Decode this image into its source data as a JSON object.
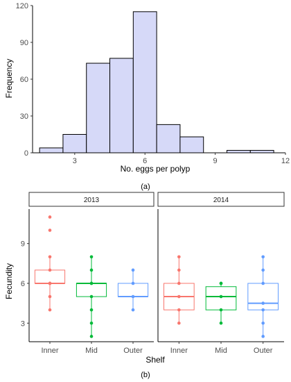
{
  "chart_data": [
    {
      "type": "bar",
      "subtype": "histogram",
      "panel_label": "(a)",
      "xlabel": "No. eggs per polyp",
      "ylabel": "Frequency",
      "xlim": [
        1.2,
        12.0
      ],
      "ylim": [
        0,
        120
      ],
      "x_ticks": [
        "3",
        "6",
        "9",
        "12"
      ],
      "x_tick_values": [
        3,
        6,
        9,
        12
      ],
      "y_ticks": [
        "0",
        "30",
        "60",
        "90",
        "120"
      ],
      "y_tick_values": [
        0,
        30,
        60,
        90,
        120
      ],
      "bin_width": 1,
      "bins": [
        {
          "x": 2,
          "value": 4
        },
        {
          "x": 3,
          "value": 15
        },
        {
          "x": 4,
          "value": 73
        },
        {
          "x": 5,
          "value": 77
        },
        {
          "x": 6,
          "value": 115
        },
        {
          "x": 7,
          "value": 23
        },
        {
          "x": 8,
          "value": 13
        },
        {
          "x": 9,
          "value": 0
        },
        {
          "x": 10,
          "value": 2
        },
        {
          "x": 11,
          "value": 2
        }
      ],
      "bar_fill": "#d6d9f8",
      "bar_stroke": "#000000",
      "grid": false
    },
    {
      "type": "box",
      "panel_label": "(b)",
      "xlabel": "Shelf",
      "ylabel": "Fecundity",
      "ylim": [
        1.6,
        11.6
      ],
      "y_ticks": [
        "3",
        "6",
        "9"
      ],
      "y_tick_values": [
        3,
        6,
        9
      ],
      "grid": false,
      "facets": [
        {
          "label": "2013",
          "groups": [
            {
              "name": "Inner",
              "color": "#f8766d",
              "q1": 6,
              "median": 6,
              "q3": 7,
              "whisker_low": 4,
              "whisker_high": 8,
              "points": [
                4,
                5,
                6,
                6,
                6,
                7,
                8,
                10,
                11
              ]
            },
            {
              "name": "Mid",
              "color": "#00ba38",
              "q1": 5,
              "median": 6,
              "q3": 6,
              "whisker_low": 2,
              "whisker_high": 8,
              "points": [
                2,
                3,
                4,
                5,
                6,
                6,
                7,
                8
              ]
            },
            {
              "name": "Outer",
              "color": "#619cff",
              "q1": 5,
              "median": 5,
              "q3": 6,
              "whisker_low": 4,
              "whisker_high": 7,
              "points": [
                4,
                5,
                6,
                7
              ]
            }
          ]
        },
        {
          "label": "2014",
          "groups": [
            {
              "name": "Inner",
              "color": "#f8766d",
              "q1": 4,
              "median": 5,
              "q3": 6,
              "whisker_low": 3,
              "whisker_high": 8,
              "points": [
                3,
                4,
                5,
                6,
                7,
                8
              ]
            },
            {
              "name": "Mid",
              "color": "#00ba38",
              "q1": 4,
              "median": 5,
              "q3": 5.75,
              "whisker_low": 3,
              "whisker_high": 6,
              "points": [
                3,
                4,
                5,
                6,
                6
              ]
            },
            {
              "name": "Outer",
              "color": "#619cff",
              "q1": 4,
              "median": 4.5,
              "q3": 6,
              "whisker_low": 2,
              "whisker_high": 8,
              "points": [
                2,
                3,
                4,
                4.5,
                6,
                7,
                8
              ]
            }
          ]
        }
      ]
    }
  ]
}
